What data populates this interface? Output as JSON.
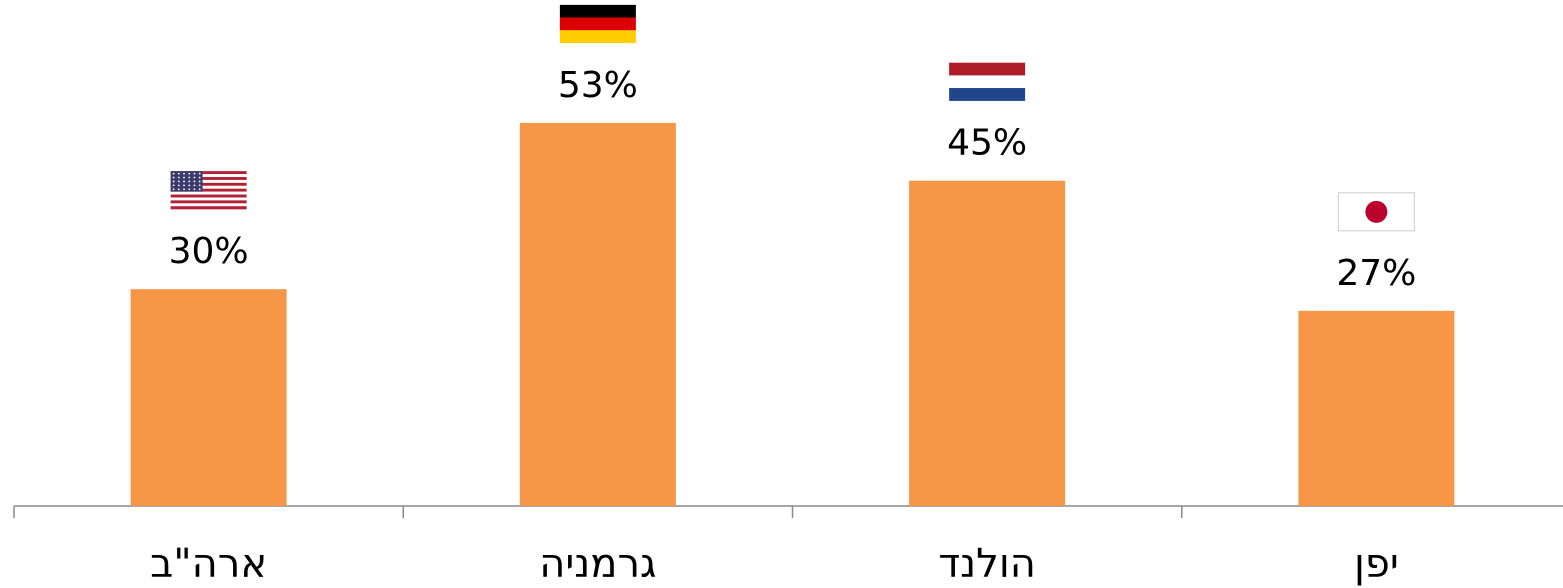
{
  "chart_data": {
    "type": "bar",
    "categories": [
      "ארה\"ב",
      "גרמניה",
      "הולנד",
      "יפן"
    ],
    "values": [
      30,
      53,
      45,
      27
    ],
    "value_labels": [
      "30%",
      "53%",
      "45%",
      "27%"
    ],
    "color": "#f79646",
    "ylim": [
      0,
      70
    ]
  }
}
